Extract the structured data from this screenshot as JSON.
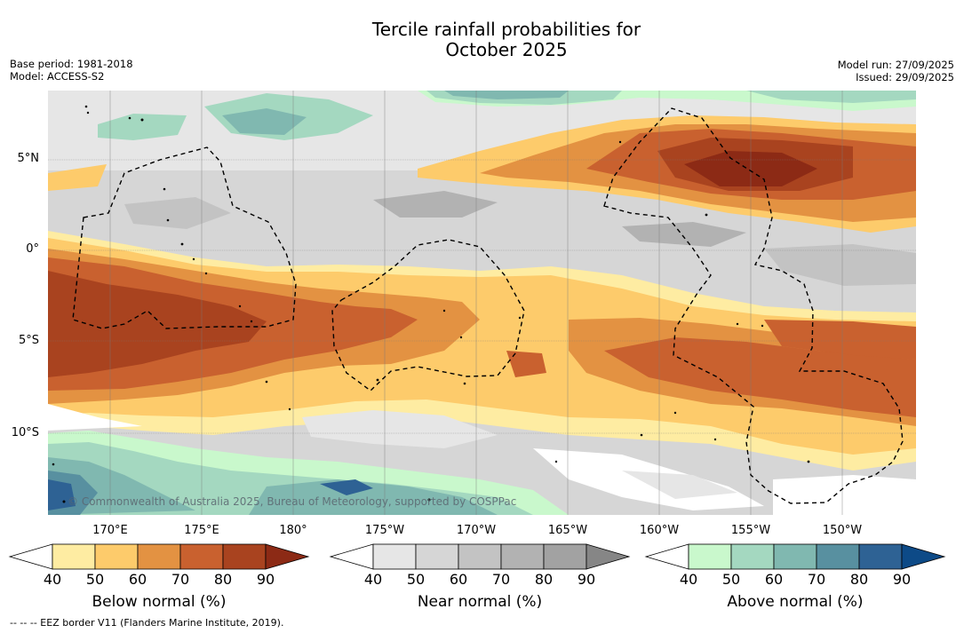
{
  "title": {
    "line1": "Tercile rainfall probabilities for",
    "line2": "October 2025"
  },
  "meta": {
    "base_period": "Base period: 1981-2018",
    "model": "Model: ACCESS-S2",
    "model_run": "Model run: 27/09/2025",
    "issued": "Issued: 29/09/2025"
  },
  "map": {
    "lat_labels": [
      "5°N",
      "0°",
      "5°S",
      "10°S"
    ],
    "lon_labels": [
      "170°E",
      "175°E",
      "180°",
      "175°W",
      "170°W",
      "165°W",
      "160°W",
      "155°W",
      "150°W"
    ],
    "copyright": "© Commonwealth of Australia 2025, Bureau of Meteorology, supported by COSPPac",
    "eez_style": "dashed",
    "land_color": "#000000"
  },
  "colorbars": [
    {
      "name": "below",
      "label": "Below normal (%)",
      "ticks": [
        "40",
        "50",
        "60",
        "70",
        "80",
        "90"
      ],
      "colors": [
        "#ffffff",
        "#feeca2",
        "#fdcb6b",
        "#e39242",
        "#c9612f",
        "#a9431f",
        "#8c2a15"
      ]
    },
    {
      "name": "near",
      "label": "Near normal (%)",
      "ticks": [
        "40",
        "50",
        "60",
        "70",
        "80",
        "90"
      ],
      "colors": [
        "#ffffff",
        "#e6e6e6",
        "#d6d6d6",
        "#c3c3c3",
        "#b2b2b2",
        "#a2a2a2",
        "#868686"
      ]
    },
    {
      "name": "above",
      "label": "Above normal (%)",
      "ticks": [
        "40",
        "50",
        "60",
        "70",
        "80",
        "90"
      ],
      "colors": [
        "#ffffff",
        "#c9f8cc",
        "#a4d8c0",
        "#80b8b0",
        "#5890a0",
        "#2e6294",
        "#0d4a87"
      ]
    }
  ],
  "footnote": "--  --  -- EEZ border V11 (Flanders Marine Institute, 2019)."
}
